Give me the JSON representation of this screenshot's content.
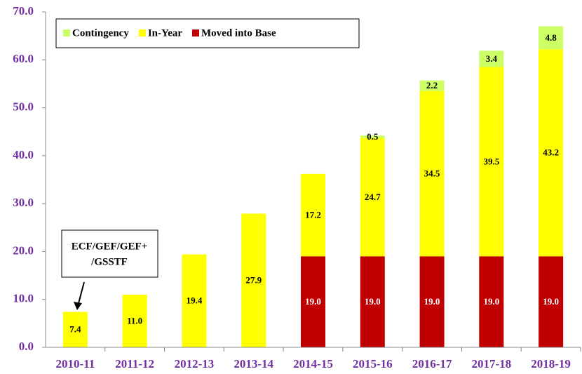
{
  "chart_data": {
    "type": "bar",
    "stacked": true,
    "categories": [
      "2010-11",
      "2011-12",
      "2012-13",
      "2013-14",
      "2014-15",
      "2015-16",
      "2016-17",
      "2017-18",
      "2018-19"
    ],
    "series": [
      {
        "name": "Moved into Base",
        "color": "#c00000",
        "label_color": "#ffffff",
        "values": [
          null,
          null,
          null,
          null,
          19.0,
          19.0,
          19.0,
          19.0,
          19.0
        ],
        "value_labels": [
          null,
          null,
          null,
          null,
          "19.0",
          "19.0",
          "19.0",
          "19.0",
          "19.0"
        ]
      },
      {
        "name": "In-Year",
        "color": "#ffff00",
        "label_color": "#000000",
        "values": [
          7.4,
          11.0,
          19.4,
          27.9,
          17.2,
          24.7,
          34.5,
          39.5,
          43.2
        ],
        "value_labels": [
          "7.4",
          "11.0",
          "19.4",
          "27.9",
          "17.2",
          "24.7",
          "34.5",
          "39.5",
          "43.2"
        ]
      },
      {
        "name": "Contingency",
        "color": "#ccff66",
        "label_color": "#000000",
        "values": [
          null,
          null,
          null,
          null,
          null,
          0.5,
          2.2,
          3.4,
          4.8
        ],
        "value_labels": [
          null,
          null,
          null,
          null,
          null,
          "0.5",
          "2.2",
          "3.4",
          "4.8"
        ]
      }
    ],
    "legend_order": [
      2,
      1,
      0
    ],
    "annotation": [
      "ECF/GEF/GEF+",
      "/GSSTF"
    ],
    "ylim": [
      0,
      70
    ],
    "yticks": [
      {
        "value": 0,
        "label": "0.0"
      },
      {
        "value": 10,
        "label": "10.0"
      },
      {
        "value": 20,
        "label": "20.0"
      },
      {
        "value": 30,
        "label": "30.0"
      },
      {
        "value": 40,
        "label": "40.0"
      },
      {
        "value": 50,
        "label": "50.0"
      },
      {
        "value": 60,
        "label": "60.0"
      },
      {
        "value": 70,
        "label": "70.0"
      }
    ],
    "grid": false
  }
}
